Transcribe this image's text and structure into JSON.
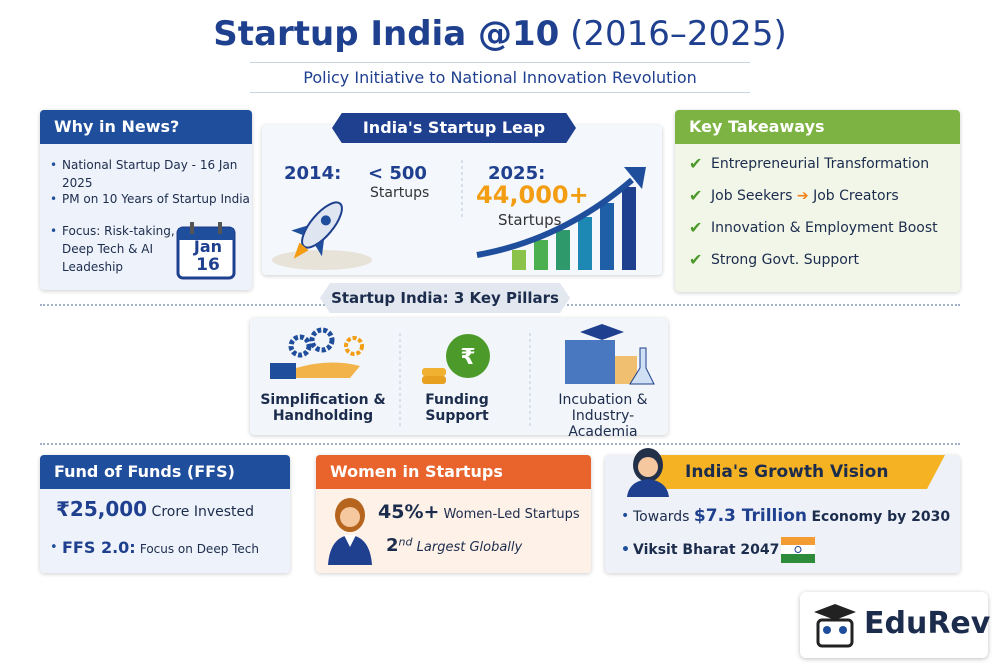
{
  "header": {
    "title": "Startup India @10",
    "title_years": "(2016–2025)",
    "subtitle": "Policy Initiative to National Innovation Revolution"
  },
  "why_in_news": {
    "title": "Why in News?",
    "items": [
      "National Startup Day - 16 Jan 2025",
      "PM on 10 Years of Startup India",
      "Focus: Risk-taking, Deep Tech & AI Leadeship"
    ],
    "calendar": {
      "month": "Jan",
      "day": "16"
    }
  },
  "startup_leap": {
    "title": "India's Startup Leap",
    "before": {
      "year": "2014:",
      "count": "< 500",
      "unit": "Startups"
    },
    "after": {
      "year": "2025:",
      "count": "44,000+",
      "unit": "Startups"
    }
  },
  "key_takeaways": {
    "title": "Key Takeaways",
    "items": [
      {
        "text": "Entrepreneurial Transformation"
      },
      {
        "text": "Job Seekers",
        "arrow_to": "Job Creators"
      },
      {
        "text": "Innovation & Employment Boost"
      },
      {
        "text": "Strong Govt. Support"
      }
    ]
  },
  "pillars": {
    "title": "Startup India: 3 Key Pillars",
    "items": [
      "Simplification & Handholding",
      "Funding Support",
      "Incubation & Industry-Academia"
    ]
  },
  "fund_of_funds": {
    "title": "Fund of Funds (FFS)",
    "items": [
      {
        "strong": "₹25,000",
        "text": "Crore Invested"
      },
      {
        "strong": "FFS 2.0:",
        "text": "Focus on Deep Tech"
      }
    ]
  },
  "women_in_startups": {
    "title": "Women in Startups",
    "items": [
      {
        "strong": "45%+",
        "text": "Women-Led Startups"
      },
      {
        "strong": "2",
        "sup": "nd",
        "text": "Largest Globally"
      }
    ]
  },
  "growth_vision": {
    "title": "India's Growth Vision",
    "items": [
      {
        "pre": "Towards",
        "strong": "$7.3 Trillion",
        "text": "Economy by 2030"
      },
      {
        "text": "Viksit Bharat 2047"
      }
    ]
  },
  "brand": "EduRev"
}
